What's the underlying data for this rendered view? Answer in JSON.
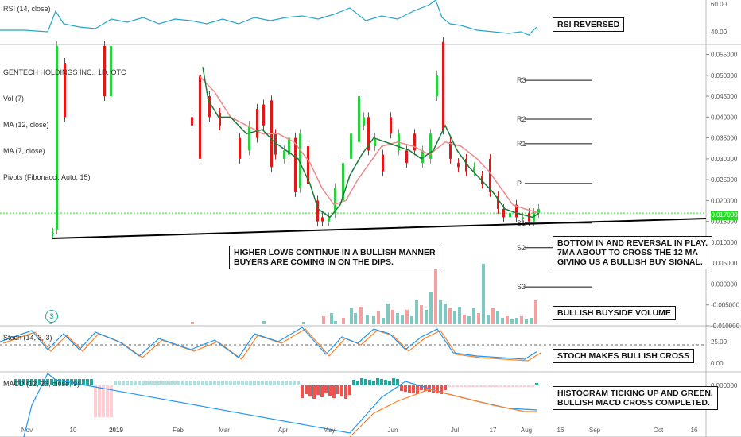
{
  "panes": {
    "rsi_title": "RSI (14, close)",
    "main_titles": [
      "GENTECH HOLDINGS INC., 1D, OTC",
      "Vol (7)",
      "MA (12, close)",
      "MA (7, close)",
      "Pivots (Fibonacci, Auto, 15)"
    ],
    "stoch_title": "Stoch (14, 3, 3)",
    "macd_title": "MACD (12, 26, close, 9)"
  },
  "notes": {
    "rsi": "RSI REVERSED",
    "higher_lows": "HIGHER LOWS CONTINUE IN A BULLISH MANNER\nBUYERS ARE COMING IN ON THE DIPS.",
    "bottom": "BOTTOM IN AND REVERSAL IN PLAY.\n7MA ABOUT TO CROSS THE 12 MA\nGIVING US A BULLISH BUY SIGNAL.",
    "volume": "BULLISH BUYSIDE VOLUME",
    "stoch": "STOCH MAKES BULLISH CROSS",
    "macd": "HISTOGRAM TICKING UP AND GREEN.\nBULLISH MACD CROSS COMPLETED."
  },
  "last_price_label": "0.017000",
  "dividend_icon": "$",
  "colors": {
    "up": "#2ecc40",
    "down": "#e01818",
    "ma7": "#1b7a3a",
    "ma12": "#ef8a8a",
    "vol_up": "#7fc8c2",
    "vol_down": "#f2a0a0",
    "rsi": "#26a6c8",
    "stoch_k": "#2196f3",
    "stoch_d": "#ff7f27",
    "macd_line": "#2196f3",
    "signal_line": "#ff7f27",
    "hist_up_strong": "#26a69a",
    "hist_up_weak": "#b2dfdb",
    "hist_down_strong": "#ef5350",
    "hist_down_weak": "#ffcdd2"
  },
  "chart_data": [
    {
      "type": "candlestick",
      "title": "GENTECH HOLDINGS INC., 1D, OTC",
      "y_ticks": [
        "0.055000",
        "0.050000",
        "0.045000",
        "0.040000",
        "0.035000",
        "0.030000",
        "0.025000",
        "0.020000",
        "0.015000",
        "0.010000",
        "0.005000",
        "0.000000",
        "-0.005000",
        "-0.010000"
      ],
      "x_ticks": [
        "Nov",
        "10",
        "2019",
        "Feb",
        "Mar",
        "Apr",
        "May",
        "Jun",
        "Jul",
        "17",
        "Aug",
        "16",
        "Sep",
        "Oct",
        "16"
      ],
      "ylim": [
        -0.01,
        0.057
      ],
      "pivot_levels": [
        {
          "name": "R3",
          "value": 0.0488
        },
        {
          "name": "R2",
          "value": 0.0395
        },
        {
          "name": "R1",
          "value": 0.0336
        },
        {
          "name": "P",
          "value": 0.0241
        },
        {
          "name": "S1",
          "value": 0.0146
        },
        {
          "name": "S2",
          "value": 0.0087
        },
        {
          "name": "S3",
          "value": -0.0007
        }
      ],
      "trendline": {
        "from": {
          "date": "early Dec 2018",
          "value": 0.0123
        },
        "to": {
          "date": "late Sep 2019",
          "value": 0.0163
        }
      },
      "last_price": 0.017
    },
    {
      "type": "line",
      "title": "RSI (14, close)",
      "y_ticks": [
        "60.00",
        "40.00"
      ],
      "series": [
        {
          "name": "RSI",
          "values": [
            32,
            48,
            36,
            52,
            50,
            46,
            55,
            48,
            58,
            44,
            50,
            62,
            46,
            60,
            52,
            48,
            56,
            44,
            38,
            36,
            38,
            40,
            37,
            42
          ]
        }
      ]
    },
    {
      "type": "line",
      "title": "Stoch (14, 3, 3)",
      "y_ticks": [
        "25.00",
        "0.00"
      ],
      "series": [
        {
          "name": "%K",
          "values": [
            40,
            10,
            60,
            35,
            20,
            50,
            15,
            45,
            10,
            35,
            25,
            60,
            40,
            15,
            10,
            8,
            6,
            5,
            4,
            3,
            8
          ]
        },
        {
          "name": "%D",
          "values": [
            42,
            15,
            55,
            38,
            25,
            45,
            20,
            40,
            15,
            30,
            28,
            55,
            42,
            20,
            12,
            9,
            7,
            6,
            5,
            4,
            6
          ]
        }
      ]
    },
    {
      "type": "bar",
      "title": "MACD (12, 26, close, 9)",
      "y_ticks": [
        "0.000000"
      ]
    }
  ]
}
